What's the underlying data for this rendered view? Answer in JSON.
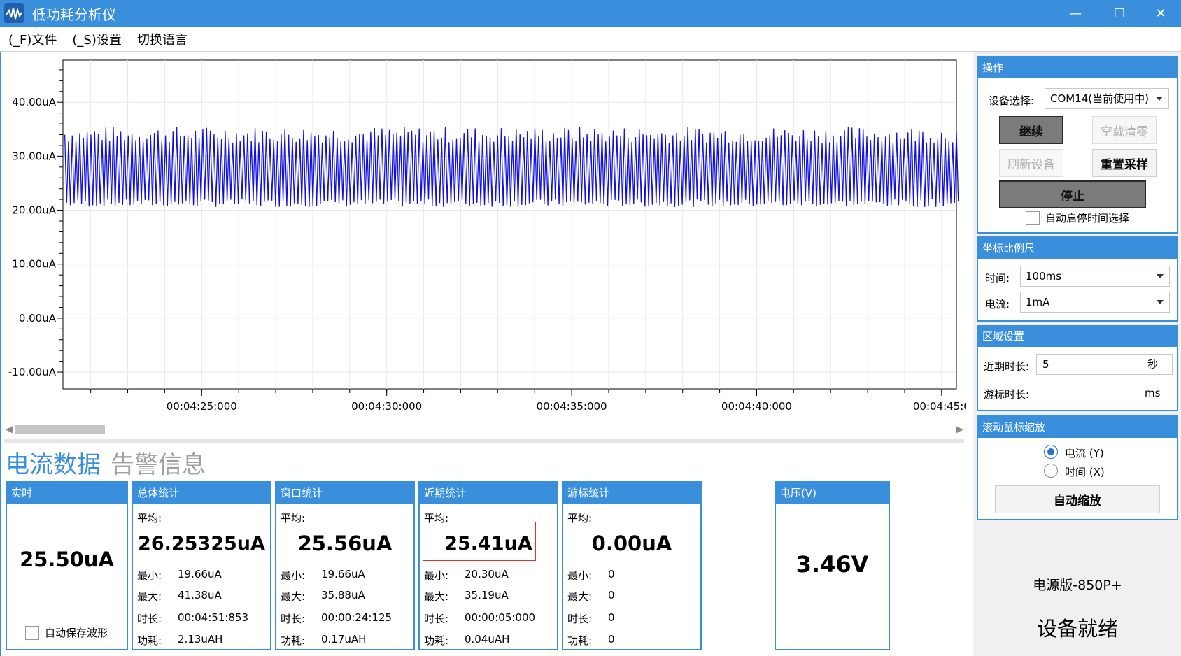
{
  "window": {
    "title": "低功耗分析仪",
    "min_glyph": "—",
    "max_glyph": "☐",
    "close_glyph": "✕"
  },
  "menu": {
    "items": [
      "(_F)文件",
      "(_S)设置",
      "切换语言"
    ]
  },
  "chart_data": {
    "type": "line",
    "title": "",
    "xlabel": "",
    "ylabel": "",
    "y_ticks": [
      "40.00uA",
      "30.00uA",
      "20.00uA",
      "10.00uA",
      "0.00uA",
      "-10.00uA"
    ],
    "y_tick_values": [
      40,
      30,
      20,
      10,
      0,
      -10
    ],
    "ylim": [
      -13.1,
      47.8
    ],
    "x_ticks": [
      "00:04:25:000",
      "00:04:30:000",
      "00:04:35:000",
      "00:04:40:000",
      "00:04:45:0"
    ],
    "x_tick_values": [
      265,
      270,
      275,
      280,
      285
    ],
    "xlim": [
      261.25,
      285.4
    ],
    "grid": true,
    "series": [
      {
        "color": "#1010e0",
        "x_start": 261.3,
        "x_end": 285.4,
        "sample_count": 240,
        "y_min": 19.66,
        "y_max": 35.88,
        "typical_low": 21.2,
        "typical_high": 34.0
      }
    ]
  },
  "scroll": {
    "left_arrow": "◀",
    "right_arrow": "▶"
  },
  "tabs": {
    "current": "电流数据",
    "alarm": "告警信息"
  },
  "realtime": {
    "title": "实时",
    "value": "25.50uA",
    "autosave_label": "自动保存波形"
  },
  "total": {
    "title": "总体统计",
    "avg_label": "平均:",
    "avg": "26.25325uA",
    "min_label": "最小:",
    "min": "19.66uA",
    "max_label": "最大:",
    "max": "41.38uA",
    "dur_label": "时长:",
    "dur": "00:04:51:853",
    "energy_label": "功耗:",
    "energy": "2.13uAH"
  },
  "window_stats": {
    "title": "窗口统计",
    "avg_label": "平均:",
    "avg": "25.56uA",
    "min_label": "最小:",
    "min": "19.66uA",
    "max_label": "最大:",
    "max": "35.88uA",
    "dur_label": "时长:",
    "dur": "00:00:24:125",
    "energy_label": "功耗:",
    "energy": "0.17uAH"
  },
  "recent": {
    "title": "近期统计",
    "avg_label": "平均:",
    "avg": "25.41uA",
    "min_label": "最小:",
    "min": "20.30uA",
    "max_label": "最大:",
    "max": "35.19uA",
    "dur_label": "时长:",
    "dur": "00:00:05:000",
    "energy_label": "功耗:",
    "energy": "0.04uAH"
  },
  "cursor": {
    "title": "游标统计",
    "avg_label": "平均:",
    "avg": "0.00uA",
    "min_label": "最小:",
    "min": "0",
    "max_label": "最大:",
    "max": "0",
    "dur_label": "时长:",
    "dur": "0",
    "energy_label": "功耗:",
    "energy": "0"
  },
  "voltage": {
    "title": "电压(V)",
    "value": "3.46V"
  },
  "ops": {
    "title": "操作",
    "device_label": "设备选择:",
    "device_value": "COM14(当前使用中)",
    "continue": "继续",
    "zero": "空载清零",
    "refresh": "刷新设备",
    "reset": "重置采样",
    "stop": "停止",
    "auto_stop_label": "自动启停时间选择"
  },
  "scale": {
    "title": "坐标比例尺",
    "time_label": "时间:",
    "time_value": "100ms",
    "current_label": "电流:",
    "current_value": "1mA"
  },
  "region": {
    "title": "区域设置",
    "recent_label": "近期时长:",
    "recent_value": "5",
    "recent_unit": "秒",
    "cursor_label": "游标时长:",
    "cursor_unit": "ms"
  },
  "zoom": {
    "title": "滚动鼠标缩放",
    "opt_current": "电流 (Y)",
    "opt_time": "时间 (X)",
    "auto": "自动缩放"
  },
  "device": {
    "model": "电源版-850P+",
    "status": "设备就绪"
  }
}
